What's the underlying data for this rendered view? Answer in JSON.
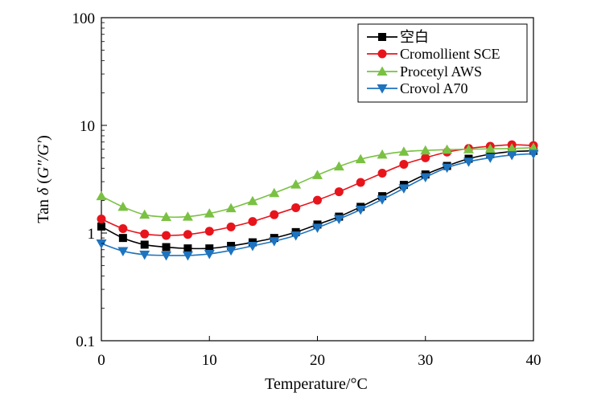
{
  "chart_data": {
    "type": "line",
    "title": "",
    "xlabel": "Temperature/°C",
    "ylabel_parts": [
      "Tan ",
      "δ",
      " (",
      "G″/G′",
      ")"
    ],
    "xlim": [
      0,
      40
    ],
    "ylim": [
      0.1,
      100
    ],
    "yscale": "log",
    "x_ticks": [
      0,
      10,
      20,
      30,
      40
    ],
    "x_tick_labels": [
      "0",
      "10",
      "20",
      "30",
      "40"
    ],
    "y_ticks": [
      0.1,
      1,
      10,
      100
    ],
    "y_tick_labels": [
      "0.1",
      "1",
      "10",
      "100"
    ],
    "grid": false,
    "legend_position": "top-right",
    "x": [
      0,
      2,
      4,
      6,
      8,
      10,
      12,
      14,
      16,
      18,
      20,
      22,
      24,
      26,
      28,
      30,
      32,
      34,
      36,
      38,
      40
    ],
    "series": [
      {
        "name": "空白",
        "color": "#000000",
        "marker": "square",
        "values": [
          1.15,
          0.9,
          0.78,
          0.74,
          0.72,
          0.72,
          0.76,
          0.82,
          0.9,
          1.02,
          1.2,
          1.42,
          1.75,
          2.2,
          2.8,
          3.5,
          4.2,
          4.9,
          5.4,
          5.7,
          5.8
        ]
      },
      {
        "name": "Cromollient SCE",
        "color": "#e8141c",
        "marker": "circle",
        "values": [
          1.35,
          1.1,
          0.98,
          0.95,
          0.97,
          1.04,
          1.14,
          1.28,
          1.48,
          1.72,
          2.02,
          2.42,
          2.95,
          3.6,
          4.35,
          5.0,
          5.65,
          6.1,
          6.4,
          6.6,
          6.5
        ]
      },
      {
        "name": "Procetyl AWS",
        "color": "#7ac143",
        "marker": "triangle-up",
        "values": [
          2.2,
          1.75,
          1.48,
          1.41,
          1.42,
          1.52,
          1.7,
          1.98,
          2.35,
          2.82,
          3.45,
          4.15,
          4.85,
          5.35,
          5.7,
          5.85,
          5.95,
          6.0,
          6.05,
          6.1,
          6.2
        ]
      },
      {
        "name": "Crovol A70",
        "color": "#1e73be",
        "marker": "triangle-down",
        "values": [
          0.8,
          0.68,
          0.63,
          0.62,
          0.62,
          0.64,
          0.69,
          0.76,
          0.84,
          0.95,
          1.12,
          1.35,
          1.65,
          2.05,
          2.6,
          3.3,
          4.05,
          4.6,
          5.0,
          5.3,
          5.45
        ]
      }
    ]
  }
}
